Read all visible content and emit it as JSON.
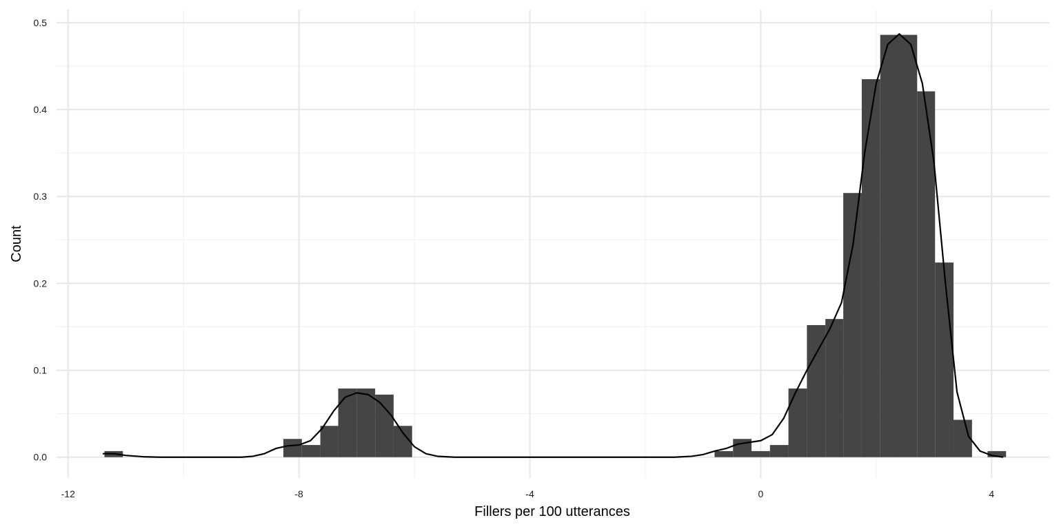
{
  "chart_data": {
    "type": "bar",
    "subtype": "histogram-with-density",
    "title": "",
    "xlabel": "Fillers per 100 utterances",
    "ylabel": "Count",
    "xlim": [
      -12.2,
      5.0
    ],
    "ylim": [
      -0.024,
      0.515
    ],
    "x_ticks": [
      {
        "value": -12,
        "label": "-12"
      },
      {
        "value": -8,
        "label": "-8"
      },
      {
        "value": -4,
        "label": "-4"
      },
      {
        "value": 0,
        "label": "0"
      },
      {
        "value": 4,
        "label": "4"
      }
    ],
    "x_minor_ticks": [
      -10,
      -6,
      -2,
      2
    ],
    "y_ticks": [
      {
        "value": 0.0,
        "label": "0.0"
      },
      {
        "value": 0.1,
        "label": "0.1"
      },
      {
        "value": 0.2,
        "label": "0.2"
      },
      {
        "value": 0.3,
        "label": "0.3"
      },
      {
        "value": 0.4,
        "label": "0.4"
      },
      {
        "value": 0.5,
        "label": "0.5"
      }
    ],
    "y_minor_ticks": [
      0.05,
      0.15,
      0.25,
      0.35,
      0.45
    ],
    "grid": true,
    "bin_width": 0.32,
    "bars": [
      {
        "x0": -11.37,
        "x1": -11.05,
        "value": 0.007
      },
      {
        "x0": -8.27,
        "x1": -7.95,
        "value": 0.021
      },
      {
        "x0": -7.95,
        "x1": -7.63,
        "value": 0.014
      },
      {
        "x0": -7.63,
        "x1": -7.32,
        "value": 0.036
      },
      {
        "x0": -7.32,
        "x1": -7.0,
        "value": 0.079
      },
      {
        "x0": -7.0,
        "x1": -6.68,
        "value": 0.079
      },
      {
        "x0": -6.68,
        "x1": -6.36,
        "value": 0.072
      },
      {
        "x0": -6.36,
        "x1": -6.04,
        "value": 0.036
      },
      {
        "x0": -0.8,
        "x1": -0.48,
        "value": 0.007
      },
      {
        "x0": -0.48,
        "x1": -0.16,
        "value": 0.021
      },
      {
        "x0": -0.16,
        "x1": 0.16,
        "value": 0.007
      },
      {
        "x0": 0.16,
        "x1": 0.48,
        "value": 0.014
      },
      {
        "x0": 0.48,
        "x1": 0.8,
        "value": 0.079
      },
      {
        "x0": 0.8,
        "x1": 1.12,
        "value": 0.152
      },
      {
        "x0": 1.12,
        "x1": 1.43,
        "value": 0.159
      },
      {
        "x0": 1.43,
        "x1": 1.75,
        "value": 0.304
      },
      {
        "x0": 1.75,
        "x1": 2.07,
        "value": 0.435
      },
      {
        "x0": 2.07,
        "x1": 2.39,
        "value": 0.486
      },
      {
        "x0": 2.39,
        "x1": 2.71,
        "value": 0.486
      },
      {
        "x0": 2.71,
        "x1": 3.02,
        "value": 0.421
      },
      {
        "x0": 3.02,
        "x1": 3.34,
        "value": 0.224
      },
      {
        "x0": 3.34,
        "x1": 3.66,
        "value": 0.043
      },
      {
        "x0": 3.93,
        "x1": 4.25,
        "value": 0.007
      }
    ],
    "density": {
      "x": [
        -11.4,
        -11.2,
        -11.0,
        -10.7,
        -10.4,
        -10.0,
        -9.5,
        -9.0,
        -8.8,
        -8.6,
        -8.4,
        -8.2,
        -8.0,
        -7.8,
        -7.6,
        -7.4,
        -7.2,
        -7.0,
        -6.8,
        -6.6,
        -6.4,
        -6.2,
        -6.0,
        -5.8,
        -5.6,
        -5.3,
        -5.0,
        -4.0,
        -3.0,
        -2.0,
        -1.5,
        -1.2,
        -1.0,
        -0.8,
        -0.6,
        -0.4,
        -0.2,
        0.0,
        0.2,
        0.4,
        0.6,
        0.8,
        1.0,
        1.2,
        1.4,
        1.6,
        1.8,
        2.0,
        2.2,
        2.4,
        2.6,
        2.8,
        3.0,
        3.2,
        3.4,
        3.6,
        3.8,
        4.0,
        4.2
      ],
      "y": [
        0.004,
        0.004,
        0.002,
        0.0005,
        0.0,
        0.0,
        0.0,
        0.0,
        0.001,
        0.004,
        0.01,
        0.013,
        0.014,
        0.019,
        0.033,
        0.053,
        0.069,
        0.074,
        0.072,
        0.063,
        0.048,
        0.028,
        0.012,
        0.004,
        0.001,
        0.0,
        0.0,
        0.0,
        0.0,
        0.0,
        0.0,
        0.001,
        0.003,
        0.007,
        0.01,
        0.015,
        0.017,
        0.019,
        0.026,
        0.045,
        0.074,
        0.1,
        0.124,
        0.148,
        0.178,
        0.245,
        0.35,
        0.43,
        0.475,
        0.487,
        0.475,
        0.43,
        0.34,
        0.2,
        0.075,
        0.024,
        0.007,
        0.002,
        0.0
      ]
    },
    "colors": {
      "bar": "#454545",
      "line": "#000000",
      "grid_major": "#e8e8e8",
      "grid_minor": "#f2f2f2",
      "text": "#1a1a1a"
    }
  }
}
